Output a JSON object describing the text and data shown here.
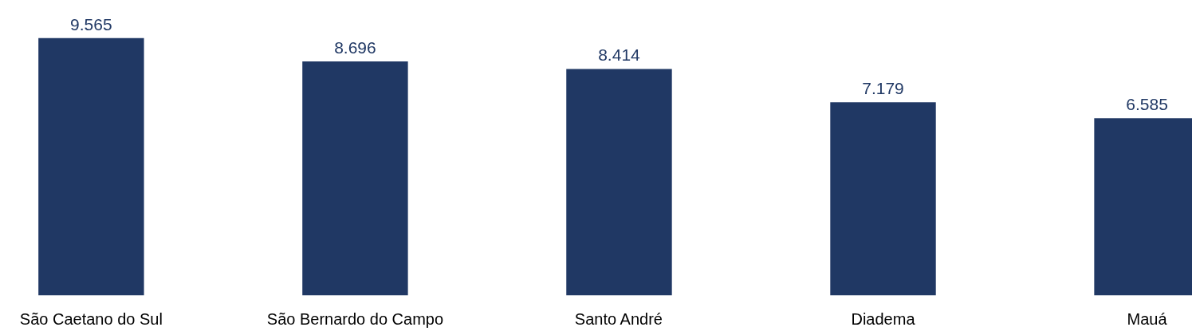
{
  "chart_data": {
    "type": "bar",
    "categories": [
      "São Caetano do Sul",
      "São Bernardo do Campo",
      "Santo André",
      "Diadema",
      "Mauá"
    ],
    "values": [
      9565,
      8696,
      8414,
      7179,
      6585
    ],
    "value_labels": [
      "9.565",
      "8.696",
      "8.414",
      "7.179",
      "6.585"
    ],
    "color": "#203864",
    "grid": false
  }
}
